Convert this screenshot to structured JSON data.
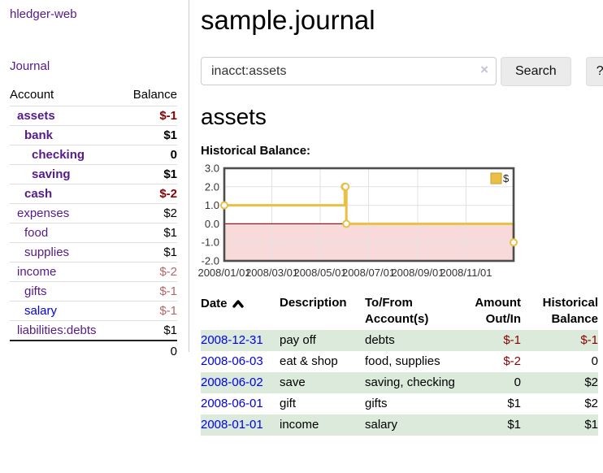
{
  "app_title": "hledger-web",
  "sidebar": {
    "journal_link": "Journal",
    "accounts_table": {
      "headers": {
        "account": "Account",
        "balance": "Balance"
      },
      "rows": [
        {
          "name": "assets",
          "indent": 1,
          "bold": true,
          "balance": "$-1",
          "balance_style": "neg"
        },
        {
          "name": "bank",
          "indent": 2,
          "bold": true,
          "balance": "$1",
          "balance_style": "pos"
        },
        {
          "name": "checking",
          "indent": 3,
          "bold": true,
          "balance": "0",
          "balance_style": "pos"
        },
        {
          "name": "saving",
          "indent": 3,
          "bold": true,
          "balance": "$1",
          "balance_style": "pos"
        },
        {
          "name": "cash",
          "indent": 2,
          "bold": true,
          "balance": "$-2",
          "balance_style": "neg"
        },
        {
          "name": "expenses",
          "indent": 1,
          "bold": false,
          "balance": "$2",
          "balance_style": "pos"
        },
        {
          "name": "food",
          "indent": 2,
          "bold": false,
          "balance": "$1",
          "balance_style": "pos"
        },
        {
          "name": "supplies",
          "indent": 2,
          "bold": false,
          "balance": "$1",
          "balance_style": "pos"
        },
        {
          "name": "income",
          "indent": 1,
          "bold": false,
          "balance": "$-2",
          "balance_style": "neg-faded"
        },
        {
          "name": "gifts",
          "indent": 2,
          "bold": false,
          "balance": "$-1",
          "balance_style": "neg-faded"
        },
        {
          "name": "salary",
          "indent": 2,
          "bold": false,
          "link_style": "unvisited",
          "balance": "$-1",
          "balance_style": "neg-faded"
        },
        {
          "name": "liabilities:debts",
          "indent": 1,
          "bold": false,
          "balance": "$1",
          "balance_style": "pos"
        }
      ],
      "total": "0"
    }
  },
  "header": {
    "title": "sample.journal"
  },
  "search": {
    "value": "inacct:assets",
    "clear_icon": "×",
    "button_label": "Search",
    "help_label": "?"
  },
  "account_page": {
    "title": "assets",
    "chart_label": "Historical Balance:"
  },
  "chart_data": {
    "type": "line",
    "title": "Historical Balance:",
    "step": true,
    "series": [
      {
        "name": "$",
        "color": "#e9bf45",
        "points": [
          {
            "date": "2008/01/01",
            "day": 0,
            "value": 1
          },
          {
            "date": "2008/06/01",
            "day": 152,
            "value": 2
          },
          {
            "date": "2008/06/02",
            "day": 153,
            "value": 2
          },
          {
            "date": "2008/06/03",
            "day": 154,
            "value": 0
          },
          {
            "date": "2008/12/31",
            "day": 365,
            "value": -1
          }
        ]
      }
    ],
    "x_ticks": [
      {
        "label": "2008/01/01",
        "day": 0
      },
      {
        "label": "2008/03/01",
        "day": 60
      },
      {
        "label": "2008/05/01",
        "day": 121
      },
      {
        "label": "2008/07/01",
        "day": 182
      },
      {
        "label": "2008/09/01",
        "day": 244
      },
      {
        "label": "2008/11/01",
        "day": 305
      }
    ],
    "x_range_days": [
      0,
      365
    ],
    "y_ticks": [
      "3.0",
      "2.0",
      "1.0",
      "0.0",
      "-1.0",
      "-2.0"
    ],
    "ylim": [
      -2,
      3
    ],
    "grid": true,
    "negative_region_color": "#f9dada",
    "zero_line_color": "#8b1a1a",
    "grid_color": "#e2e2e2",
    "border_color": "#4d4d4d",
    "legend": {
      "label": "$",
      "position": "top-right"
    }
  },
  "register": {
    "headers": {
      "date": "Date",
      "description": "Description",
      "accounts": "To/From Account(s)",
      "amount": "Amount Out/In",
      "balance": "Historical Balance"
    },
    "sort": "ascending",
    "rows": [
      {
        "date": "2008-12-31",
        "description": "pay off",
        "accounts": "debts",
        "amount": "$-1",
        "amount_neg": true,
        "balance": "$-1",
        "balance_neg": true
      },
      {
        "date": "2008-06-03",
        "description": "eat & shop",
        "accounts": "food, supplies",
        "amount": "$-2",
        "amount_neg": true,
        "balance": "0",
        "balance_neg": false
      },
      {
        "date": "2008-06-02",
        "description": "save",
        "accounts": "saving, checking",
        "amount": "0",
        "amount_neg": false,
        "balance": "$2",
        "balance_neg": false
      },
      {
        "date": "2008-06-01",
        "description": "gift",
        "accounts": "gifts",
        "amount": "$1",
        "amount_neg": false,
        "balance": "$2",
        "balance_neg": false
      },
      {
        "date": "2008-01-01",
        "description": "income",
        "accounts": "salary",
        "amount": "$1",
        "amount_neg": false,
        "balance": "$1",
        "balance_neg": false
      }
    ]
  }
}
